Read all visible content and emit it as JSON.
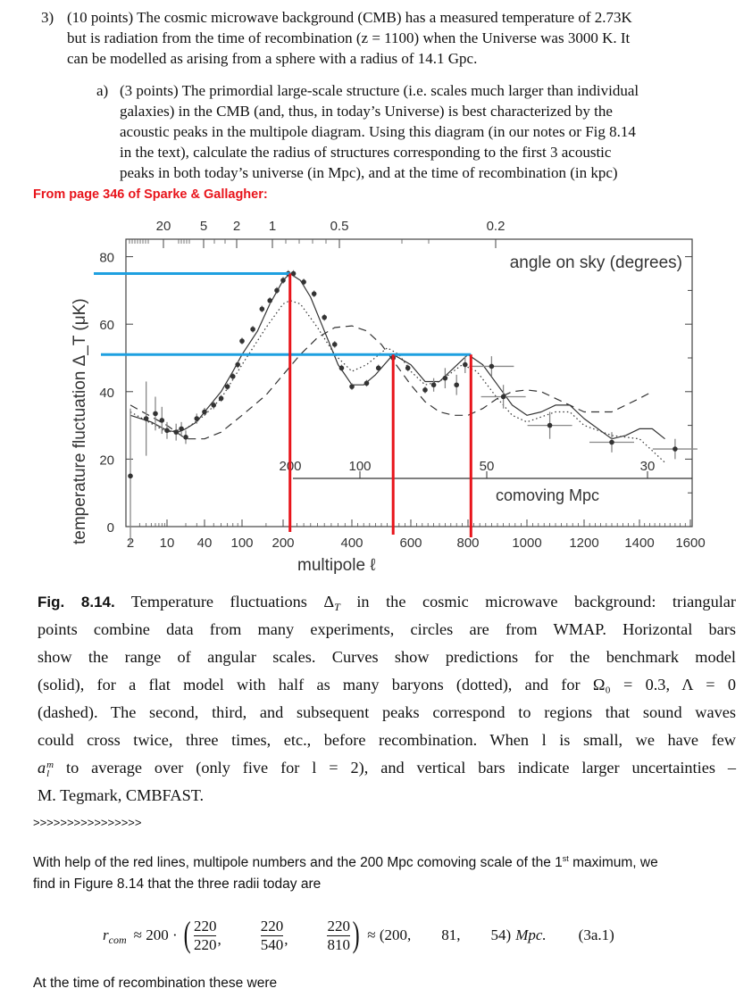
{
  "question": {
    "number": "3)",
    "lines": [
      "(10 points) The cosmic microwave background (CMB) has a measured temperature of 2.73K",
      "but is radiation from the time of recombination (z = 1100) when the Universe was 3000 K.  It",
      "can be modelled as arising from a sphere with a radius of 14.1 Gpc."
    ],
    "part_a": {
      "label": "a)",
      "lines": [
        "(3 points) The primordial large-scale structure (i.e. scales much larger than individual",
        "galaxies) in the CMB (and, thus, in today’s Universe) is best characterized by the",
        "acoustic peaks in the multipole diagram.  Using this diagram (in our notes or Fig 8.14",
        "in the text), calculate the radius of structures corresponding to the first 3 acoustic",
        "peaks in both today’s universe (in Mpc), and at the time of recombination (in kpc)"
      ]
    }
  },
  "source_note": "From page 346 of Sparke & Gallagher:",
  "chart_data": {
    "type": "line",
    "ylabel": "temperature fluctuation Δ_T (μK)",
    "xlabel": "multipole ℓ",
    "ylim": [
      0,
      85
    ],
    "yticks": [
      "0",
      "20",
      "40",
      "60",
      "80"
    ],
    "xticks": [
      "2",
      "10",
      "40",
      "100",
      "200",
      "400",
      "600",
      "800",
      "1000",
      "1200",
      "1400",
      "1600"
    ],
    "top_axis_label": "angle on sky (degrees)",
    "top_ticks": [
      "20",
      "5",
      "2",
      "1",
      "0.5",
      "0.2"
    ],
    "comoving_label": "comoving Mpc",
    "comoving_ticks": [
      "200",
      "100",
      "50",
      "30"
    ],
    "series": [
      {
        "name": "benchmark model (solid)",
        "style": "solid",
        "x": [
          2,
          5,
          10,
          15,
          20,
          30,
          40,
          60,
          80,
          100,
          130,
          160,
          200,
          220,
          250,
          280,
          320,
          360,
          400,
          440,
          480,
          540,
          600,
          650,
          700,
          750,
          800,
          850,
          900,
          950,
          1000,
          1050,
          1100,
          1150,
          1200,
          1300,
          1350,
          1400,
          1450,
          1500
        ],
        "y": [
          33,
          31,
          28.5,
          28,
          29,
          31,
          34,
          40,
          46,
          51,
          58,
          66,
          73,
          75,
          73,
          68,
          58,
          48,
          42,
          42,
          45,
          51,
          48,
          43,
          43,
          47,
          51,
          48,
          42,
          36,
          33,
          34,
          36,
          36,
          32,
          26,
          27,
          29,
          29,
          26
        ]
      },
      {
        "name": "half baryons (dotted)",
        "style": "dotted",
        "x": [
          2,
          10,
          20,
          40,
          60,
          100,
          150,
          200,
          220,
          250,
          300,
          350,
          400,
          450,
          520,
          560,
          600,
          650,
          700,
          780,
          830,
          900,
          950,
          1000,
          1100,
          1150,
          1200,
          1300,
          1400,
          1500
        ],
        "y": [
          34,
          28,
          29,
          33,
          38,
          48,
          59,
          66,
          67,
          66,
          59,
          51,
          46,
          48,
          53,
          51,
          46,
          42,
          43,
          48,
          46,
          38,
          33,
          31,
          34,
          34,
          30,
          27,
          26,
          19
        ]
      },
      {
        "name": "Ω0 = 0.3, Λ = 0 (dashed)",
        "style": "dashed",
        "x": [
          2,
          10,
          20,
          40,
          60,
          100,
          150,
          200,
          250,
          300,
          350,
          400,
          450,
          500,
          550,
          600,
          650,
          700,
          750,
          800,
          850,
          900,
          950,
          1000,
          1050,
          1100,
          1200,
          1300,
          1400,
          1450
        ],
        "y": [
          36,
          30,
          26,
          26,
          28,
          33,
          39,
          45,
          51,
          56,
          59,
          59.5,
          58,
          54,
          48,
          42,
          37,
          34,
          33,
          33,
          35,
          38,
          40,
          40.5,
          40,
          38,
          34,
          34,
          38,
          40
        ]
      }
    ],
    "points": {
      "x": [
        2,
        4,
        6,
        8,
        10,
        14,
        17,
        20,
        30,
        40,
        50,
        60,
        70,
        80,
        90,
        100,
        120,
        140,
        160,
        180,
        200,
        215,
        230,
        260,
        290,
        320,
        350,
        370,
        400,
        450,
        490,
        540,
        590,
        650,
        680,
        720,
        760,
        790,
        880,
        920,
        1080,
        1300,
        1540
      ],
      "y": [
        15,
        32,
        33.5,
        31.5,
        28.5,
        28,
        29,
        26.5,
        32,
        34,
        36,
        38,
        41.5,
        44.5,
        48,
        55,
        58.5,
        64.5,
        67,
        70,
        73,
        75,
        75,
        72.5,
        69,
        62,
        54,
        47,
        41.5,
        42.5,
        47,
        50,
        47,
        40.5,
        42,
        44,
        42,
        48,
        47.5,
        38.5,
        30,
        25,
        23
      ],
      "err": [
        20,
        11,
        5,
        4,
        2.5,
        2.5,
        2,
        2,
        1.5,
        1.2,
        1.2,
        1,
        1,
        1,
        1,
        1,
        1,
        1,
        1,
        1,
        1,
        1,
        1,
        1,
        1,
        1,
        1,
        1,
        1,
        1,
        1,
        1,
        1,
        1,
        2,
        3,
        3,
        2.5,
        3,
        3.5,
        4,
        3,
        3
      ]
    },
    "annotations": {
      "red_vertical_lines_multipole": [
        220,
        540,
        810
      ],
      "blue_horizontal_lines_uK": [
        75,
        51
      ]
    }
  },
  "caption": {
    "fig_label": "Fig. 8.14.",
    "lines": [
      " Temperature fluctuations Δ",
      "points combine data from many experiments, circles are from WMAP. Horizontal bars",
      "show the range of angular scales. Curves show predictions for the benchmark model",
      "(solid), for a flat model with half as many baryons (dotted), and for Ω₀ = 0.3, Λ = 0",
      "(dashed). The second, third, and subsequent peaks correspond to regions that sound waves",
      "could cross twice, three times, etc., before recombination. When l is small, we have few",
      " to average over (only five for l = 2), and vertical bars indicate larger uncertainties –",
      "M. Tegmark, CMBFAST."
    ],
    "line1_sub": "T",
    "line1_rest": " in the cosmic microwave background: triangular",
    "a_symbol": "a",
    "a_sup": "m",
    "a_sub": "l"
  },
  "separator": ">>>>>>>>>>>>>>>>",
  "answer": {
    "line1_pre": "With help of the red lines, multipole numbers and the 200 Mpc comoving scale of the 1",
    "line1_sup": "st",
    "line1_post": " maximum, we",
    "line2": "find in Figure 8.14 that the three radii today are",
    "eq": {
      "lhs": "r",
      "lhs_sub": "com",
      "approx1": "≈ 200 ·",
      "fracs": [
        [
          "220",
          "220"
        ],
        [
          "220",
          "540"
        ],
        [
          "220",
          "810"
        ]
      ],
      "approx2": "≈ (200,",
      "v2": "81,",
      "v3": "54)",
      "unit": "Mpc.",
      "label": "(3a.1)"
    },
    "line3": "At the time of recombination these were"
  },
  "colors": {
    "red_line": "#e8141b",
    "blue_line": "#1ea0e0",
    "source_note": "#e8141b"
  }
}
